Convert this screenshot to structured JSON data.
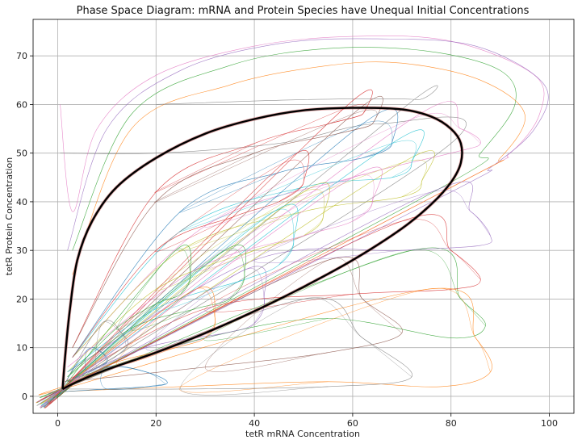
{
  "chart_data": {
    "type": "line",
    "title": "Phase Space Diagram: mRNA and Protein Species have Unequal Initial Concentrations",
    "xlabel": "tetR mRNA Concentration",
    "ylabel": "tetR Protein Concentration",
    "xlim": [
      -5,
      105
    ],
    "ylim": [
      -3.5,
      77.5
    ],
    "xticks": [
      0,
      20,
      40,
      60,
      80,
      100
    ],
    "yticks": [
      0,
      10,
      20,
      30,
      40,
      50,
      60,
      70
    ],
    "grid": true,
    "legend": "none",
    "limit_cycle": {
      "color": "#000000",
      "points": [
        [
          1.0,
          1.5
        ],
        [
          4.0,
          3.0
        ],
        [
          10.0,
          5.5
        ],
        [
          20.0,
          9.0
        ],
        [
          30.0,
          13.0
        ],
        [
          40.0,
          17.5
        ],
        [
          50.0,
          22.5
        ],
        [
          60.0,
          28.0
        ],
        [
          70.0,
          34.5
        ],
        [
          76.0,
          39.5
        ],
        [
          80.0,
          44.0
        ],
        [
          82.0,
          48.0
        ],
        [
          82.0,
          52.0
        ],
        [
          80.0,
          55.0
        ],
        [
          76.0,
          57.5
        ],
        [
          70.0,
          59.0
        ],
        [
          60.0,
          59.3
        ],
        [
          50.0,
          58.8
        ],
        [
          40.0,
          57.0
        ],
        [
          30.0,
          54.0
        ],
        [
          20.0,
          49.0
        ],
        [
          12.0,
          43.0
        ],
        [
          7.0,
          36.0
        ],
        [
          4.0,
          28.0
        ],
        [
          2.5,
          18.0
        ],
        [
          1.5,
          8.0
        ],
        [
          1.0,
          1.5
        ]
      ]
    },
    "series": [
      {
        "color": "#e377c2",
        "start": [
          0.5,
          60.0
        ],
        "spiral": false,
        "outer": [
          [
            0.5,
            60.0
          ],
          [
            3.0,
            38.0
          ],
          [
            8.0,
            55.0
          ],
          [
            20.0,
            66.0
          ],
          [
            40.0,
            72.0
          ],
          [
            60.0,
            74.0
          ],
          [
            80.0,
            73.0
          ],
          [
            97.0,
            66.0
          ],
          [
            98.0,
            58.0
          ],
          [
            92.0,
            50.0
          ],
          [
            82.0,
            44.0
          ]
        ]
      },
      {
        "color": "#9467bd",
        "start": [
          60.0,
          74.0
        ],
        "spiral": false,
        "outer": [
          [
            2.0,
            30.0
          ],
          [
            10.0,
            55.0
          ],
          [
            25.0,
            67.0
          ],
          [
            45.0,
            72.5
          ],
          [
            65.0,
            73.5
          ],
          [
            85.0,
            72.0
          ],
          [
            99.0,
            64.0
          ],
          [
            97.0,
            55.0
          ],
          [
            88.0,
            47.0
          ],
          [
            80.0,
            42.0
          ]
        ]
      },
      {
        "color": "#2ca02c",
        "start": [
          85.0,
          65.0
        ],
        "spiral": false,
        "outer": [
          [
            3.0,
            30.0
          ],
          [
            15.0,
            58.0
          ],
          [
            35.0,
            68.0
          ],
          [
            55.0,
            71.5
          ],
          [
            75.0,
            71.0
          ],
          [
            90.0,
            67.0
          ],
          [
            93.0,
            60.0
          ],
          [
            86.0,
            50.0
          ],
          [
            80.0,
            44.0
          ]
        ]
      },
      {
        "color": "#ff7f0e",
        "start": [
          95.0,
          60.0
        ],
        "spiral": false,
        "outer": [
          [
            3.0,
            25.0
          ],
          [
            15.0,
            55.0
          ],
          [
            35.0,
            64.0
          ],
          [
            55.0,
            68.0
          ],
          [
            70.0,
            68.5
          ],
          [
            86.0,
            65.0
          ],
          [
            95.0,
            58.0
          ],
          [
            90.0,
            49.0
          ],
          [
            82.0,
            44.0
          ]
        ]
      },
      {
        "color": "#7f7f7f",
        "start": [
          0.5,
          50.0
        ],
        "spiral": false,
        "outer": [
          [
            0.5,
            50.0
          ],
          [
            20.0,
            50.0
          ],
          [
            45.0,
            52.0
          ],
          [
            65.0,
            56.0
          ],
          [
            80.0,
            52.0
          ]
        ]
      },
      {
        "color": "#7f7f7f",
        "start": [
          20.0,
          60.0
        ],
        "spiral": false,
        "outer": [
          [
            20.0,
            60.0
          ],
          [
            50.0,
            61.0
          ],
          [
            73.0,
            61.0
          ],
          [
            70.0,
            59.0
          ]
        ]
      },
      {
        "color": "#d62728",
        "start": [
          85.0,
          23.5
        ],
        "spiral": true,
        "outer": [
          [
            1.5,
            3.0
          ],
          [
            30.0,
            18.0
          ],
          [
            60.0,
            21.0
          ],
          [
            80.0,
            22.0
          ],
          [
            86.0,
            24.0
          ],
          [
            80.0,
            30.0
          ],
          [
            70.0,
            36.0
          ]
        ]
      },
      {
        "color": "#2ca02c",
        "start": [
          87.0,
          14.5
        ],
        "spiral": true,
        "outer": [
          [
            1.5,
            3.0
          ],
          [
            30.0,
            12.0
          ],
          [
            55.0,
            16.0
          ],
          [
            80.0,
            12.0
          ],
          [
            87.0,
            14.5
          ],
          [
            82.0,
            20.0
          ],
          [
            72.0,
            30.0
          ]
        ]
      },
      {
        "color": "#ff7f0e",
        "start": [
          88.0,
          5.0
        ],
        "spiral": true,
        "outer": [
          [
            1.5,
            1.0
          ],
          [
            25.0,
            2.0
          ],
          [
            55.0,
            3.0
          ],
          [
            78.0,
            2.0
          ],
          [
            88.0,
            5.0
          ],
          [
            85.0,
            12.0
          ],
          [
            75.0,
            22.0
          ]
        ]
      },
      {
        "color": "#8c564b",
        "start": [
          70.0,
          13.0
        ],
        "spiral": true,
        "outer": [
          [
            2.0,
            3.0
          ],
          [
            30.0,
            6.0
          ],
          [
            55.0,
            9.0
          ],
          [
            70.0,
            13.0
          ],
          [
            62.0,
            20.0
          ],
          [
            55.0,
            28.0
          ]
        ]
      },
      {
        "color": "#7f7f7f",
        "start": [
          70.0,
          4.0
        ],
        "spiral": true,
        "outer": [
          [
            2.0,
            1.5
          ],
          [
            25.0,
            1.5
          ],
          [
            55.0,
            2.0
          ],
          [
            72.0,
            4.0
          ],
          [
            62.0,
            12.0
          ],
          [
            50.0,
            20.0
          ]
        ]
      },
      {
        "color": "#9467bd",
        "start": [
          88.0,
          33.0
        ],
        "spiral": true,
        "outer": [
          [
            2.0,
            5.0
          ],
          [
            40.0,
            28.0
          ],
          [
            70.0,
            30.0
          ],
          [
            86.0,
            31.0
          ],
          [
            88.0,
            33.0
          ],
          [
            84.0,
            38.0
          ],
          [
            76.0,
            42.0
          ]
        ]
      },
      {
        "color": "#e377c2",
        "start": [
          85.0,
          52.0
        ],
        "spiral": true,
        "outer": [
          [
            3.0,
            8.0
          ],
          [
            30.0,
            35.0
          ],
          [
            60.0,
            45.0
          ],
          [
            80.0,
            50.0
          ],
          [
            86.0,
            52.0
          ],
          [
            82.0,
            55.0
          ],
          [
            72.0,
            57.0
          ]
        ]
      },
      {
        "color": "#1f77b4",
        "start": [
          20.0,
          3.0
        ],
        "spiral": true,
        "outer": [
          [
            1.5,
            1.0
          ],
          [
            10.0,
            1.5
          ],
          [
            22.0,
            2.5
          ],
          [
            18.0,
            5.0
          ],
          [
            10.0,
            6.0
          ]
        ]
      },
      {
        "color": "#bcbd22",
        "start": [
          70.0,
          41.0
        ],
        "spiral": true,
        "outer": [
          [
            3.0,
            8.0
          ],
          [
            25.0,
            30.0
          ],
          [
            50.0,
            38.0
          ],
          [
            70.0,
            41.0
          ],
          [
            74.0,
            44.0
          ],
          [
            70.0,
            48.0
          ]
        ]
      },
      {
        "color": "#17becf",
        "start": [
          68.0,
          45.0
        ],
        "spiral": true,
        "outer": [
          [
            3.0,
            8.0
          ],
          [
            25.0,
            34.0
          ],
          [
            50.0,
            43.0
          ],
          [
            68.0,
            45.0
          ],
          [
            72.0,
            48.0
          ],
          [
            68.0,
            52.0
          ]
        ]
      },
      {
        "color": "#1f77b4",
        "start": [
          62.0,
          49.0
        ],
        "spiral": true,
        "outer": [
          [
            3.0,
            8.0
          ],
          [
            25.0,
            38.0
          ],
          [
            45.0,
            46.0
          ],
          [
            62.0,
            49.0
          ],
          [
            68.0,
            52.0
          ],
          [
            62.0,
            56.0
          ]
        ]
      },
      {
        "color": "#d62728",
        "start": [
          55.0,
          56.0
        ],
        "spiral": true,
        "outer": [
          [
            3.0,
            10.0
          ],
          [
            20.0,
            42.0
          ],
          [
            40.0,
            52.0
          ],
          [
            55.0,
            56.0
          ],
          [
            62.0,
            58.0
          ],
          [
            58.0,
            59.0
          ]
        ]
      },
      {
        "color": "#8c564b",
        "start": [
          57.0,
          54.0
        ],
        "spiral": true,
        "outer": [
          [
            3.0,
            10.0
          ],
          [
            20.0,
            40.0
          ],
          [
            40.0,
            50.0
          ],
          [
            57.0,
            54.0
          ],
          [
            64.0,
            56.0
          ],
          [
            60.0,
            58.0
          ]
        ]
      },
      {
        "color": "#bcbd22",
        "start": [
          50.0,
          33.0
        ],
        "spiral": true,
        "outer": [
          [
            2.0,
            5.0
          ],
          [
            20.0,
            22.0
          ],
          [
            40.0,
            30.0
          ],
          [
            50.0,
            33.0
          ],
          [
            54.0,
            37.0
          ],
          [
            50.0,
            42.0
          ]
        ]
      },
      {
        "color": "#17becf",
        "start": [
          45.0,
          27.0
        ],
        "spiral": true,
        "outer": [
          [
            2.0,
            5.0
          ],
          [
            20.0,
            18.0
          ],
          [
            38.0,
            24.0
          ],
          [
            45.0,
            27.0
          ],
          [
            48.0,
            32.0
          ],
          [
            44.0,
            38.0
          ]
        ]
      },
      {
        "color": "#2ca02c",
        "start": [
          35.0,
          20.0
        ],
        "spiral": true,
        "outer": [
          [
            2.0,
            4.0
          ],
          [
            15.0,
            14.0
          ],
          [
            28.0,
            18.0
          ],
          [
            35.0,
            20.0
          ],
          [
            38.0,
            25.0
          ],
          [
            34.0,
            30.0
          ]
        ]
      },
      {
        "color": "#ff7f0e",
        "start": [
          30.0,
          12.0
        ],
        "spiral": true,
        "outer": [
          [
            1.5,
            2.0
          ],
          [
            12.0,
            7.0
          ],
          [
            24.0,
            10.0
          ],
          [
            30.0,
            12.0
          ],
          [
            32.0,
            16.0
          ],
          [
            28.0,
            22.0
          ]
        ]
      },
      {
        "color": "#1f77b4",
        "start": [
          10.0,
          7.0
        ],
        "spiral": true,
        "outer": [
          [
            2.0,
            3.0
          ],
          [
            6.0,
            5.0
          ],
          [
            10.0,
            7.0
          ],
          [
            9.0,
            9.0
          ],
          [
            6.0,
            9.5
          ]
        ]
      },
      {
        "color": "#7f7f7f",
        "start": [
          14.0,
          10.0
        ],
        "spiral": true,
        "outer": [
          [
            2.0,
            3.0
          ],
          [
            8.0,
            6.0
          ],
          [
            14.0,
            10.0
          ],
          [
            13.0,
            13.0
          ],
          [
            9.0,
            15.0
          ]
        ]
      },
      {
        "color": "#9467bd",
        "start": [
          40.0,
          15.0
        ],
        "spiral": true,
        "outer": [
          [
            2.0,
            3.0
          ],
          [
            18.0,
            10.0
          ],
          [
            34.0,
            13.0
          ],
          [
            40.0,
            15.0
          ],
          [
            42.0,
            20.0
          ],
          [
            38.0,
            26.0
          ]
        ]
      },
      {
        "color": "#e377c2",
        "start": [
          60.0,
          36.0
        ],
        "spiral": true,
        "outer": [
          [
            2.0,
            6.0
          ],
          [
            28.0,
            26.0
          ],
          [
            50.0,
            33.0
          ],
          [
            60.0,
            36.0
          ],
          [
            64.0,
            40.0
          ],
          [
            60.0,
            45.0
          ]
        ]
      },
      {
        "color": "#d62728",
        "start": [
          45.0,
          40.0
        ],
        "spiral": true,
        "outer": [
          [
            3.0,
            8.0
          ],
          [
            20.0,
            30.0
          ],
          [
            36.0,
            37.0
          ],
          [
            45.0,
            40.0
          ],
          [
            50.0,
            44.0
          ],
          [
            46.0,
            48.0
          ]
        ]
      },
      {
        "color": "#2ca02c",
        "start": [
          25.0,
          21.0
        ],
        "spiral": true,
        "outer": [
          [
            2.0,
            4.0
          ],
          [
            12.0,
            14.0
          ],
          [
            20.0,
            19.0
          ],
          [
            25.0,
            21.0
          ],
          [
            27.0,
            25.0
          ],
          [
            24.0,
            30.0
          ]
        ]
      }
    ]
  }
}
